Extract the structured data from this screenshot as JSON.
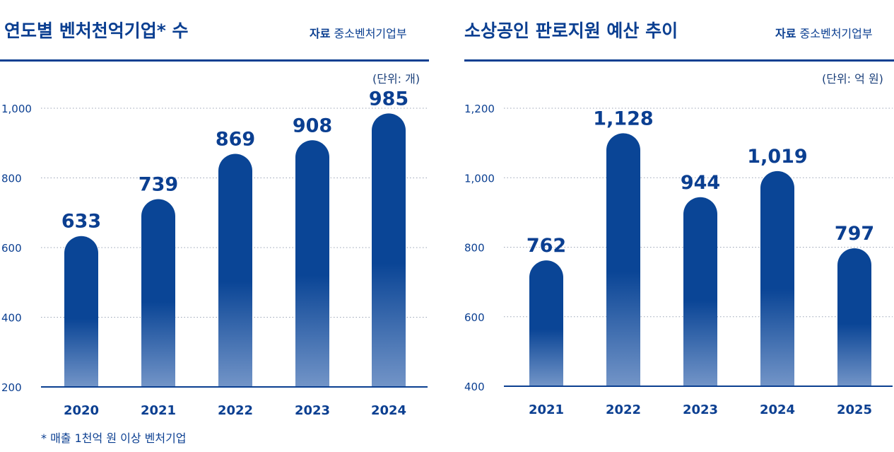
{
  "footnote": "* 매출 1천억 원 이상 벤처기업",
  "charts_meta": [
    {
      "title": "연도별 벤처천억기업* 수",
      "source_label": "자료",
      "source_name": "중소벤처기업부",
      "unit": "(단위: 개)"
    },
    {
      "title": "소상공인 판로지원 예산 추이",
      "source_label": "자료",
      "source_name": "중소벤처기업부",
      "unit": "(단위: 억 원)"
    }
  ],
  "colors": {
    "primary": "#0b3f91",
    "bar_top": "#0a4596",
    "bar_bottom": "#7294c7",
    "grid": "#9aa3b5"
  },
  "chart_data": [
    {
      "type": "bar",
      "title": "연도별 벤처천억기업* 수",
      "categories": [
        "2020",
        "2021",
        "2022",
        "2023",
        "2024"
      ],
      "values": [
        633,
        739,
        869,
        908,
        985
      ],
      "value_labels": [
        "633",
        "739",
        "869",
        "908",
        "985"
      ],
      "ylim": [
        200,
        1000
      ],
      "yticks": [
        200,
        400,
        600,
        800,
        1000
      ],
      "ytick_labels": [
        "200",
        "400",
        "600",
        "800",
        "1,000"
      ],
      "grid": true
    },
    {
      "type": "bar",
      "title": "소상공인 판로지원 예산 추이",
      "categories": [
        "2021",
        "2022",
        "2023",
        "2024",
        "2025"
      ],
      "values": [
        762,
        1128,
        944,
        1019,
        797
      ],
      "value_labels": [
        "762",
        "1,128",
        "944",
        "1,019",
        "797"
      ],
      "ylim": [
        400,
        1200
      ],
      "yticks": [
        400,
        600,
        800,
        1000,
        1200
      ],
      "ytick_labels": [
        "400",
        "600",
        "800",
        "1,000",
        "1,200"
      ],
      "grid": true
    }
  ]
}
